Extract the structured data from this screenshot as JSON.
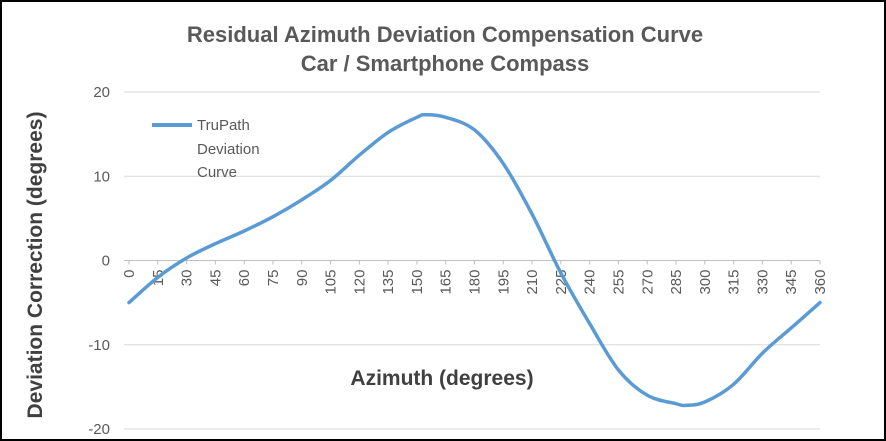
{
  "chart_data": {
    "type": "line",
    "title": "Residual Azimuth  Deviation Compensation  Curve",
    "subtitle": "Car / Smartphone Compass",
    "xlabel": "Azimuth (degrees)",
    "ylabel": "Deviation Correction (degrees)",
    "ylim": [
      -20,
      20
    ],
    "yticks": [
      20,
      10,
      0,
      -10,
      -20
    ],
    "xticks": [
      "0",
      "15",
      "30",
      "45",
      "60",
      "75",
      "90",
      "105",
      "120",
      "135",
      "150",
      "165",
      "180",
      "195",
      "210",
      "225",
      "240",
      "255",
      "270",
      "285",
      "300",
      "315",
      "330",
      "345",
      "360"
    ],
    "grid": true,
    "legend_position": "top-left",
    "line_color": "#5b9bd5",
    "series": [
      {
        "name": "TruPath Deviation Curve",
        "x": [
          0,
          15,
          30,
          45,
          60,
          75,
          90,
          105,
          120,
          135,
          150,
          155,
          165,
          180,
          195,
          210,
          225,
          240,
          255,
          270,
          285,
          290,
          300,
          315,
          330,
          345,
          360
        ],
        "y": [
          -5,
          -2,
          0.3,
          2,
          3.5,
          5.2,
          7.2,
          9.5,
          12.5,
          15.2,
          17,
          17.3,
          17,
          15.5,
          11.5,
          5.5,
          -1.5,
          -7.5,
          -13,
          -16,
          -17,
          -17.2,
          -16.8,
          -14.7,
          -11,
          -8,
          -5
        ]
      }
    ]
  },
  "legend": {
    "lines": [
      "TruPath",
      "Deviation",
      "Curve"
    ]
  }
}
